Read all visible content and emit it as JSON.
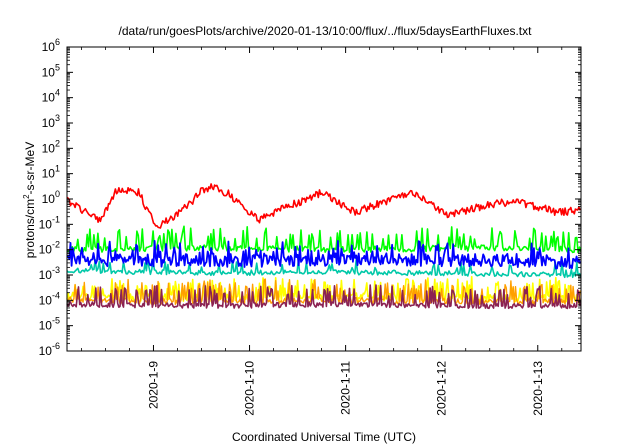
{
  "chart_data": {
    "type": "line",
    "title": "/data/run/goesPlots/archive/2020-01-13/10:00/flux/../flux/5daysEarthFluxes.txt",
    "xlabel": "Coordinated Universal Time (UTC)",
    "ylabel_parts": [
      "protons/cm",
      "2",
      "-s-sr-MeV"
    ],
    "yscale": "log",
    "ylim": [
      1e-06,
      1000000.0
    ],
    "y_ticks": [
      {
        "base": "10",
        "exp": "-6"
      },
      {
        "base": "10",
        "exp": "-5"
      },
      {
        "base": "10",
        "exp": "-4"
      },
      {
        "base": "10",
        "exp": "-3"
      },
      {
        "base": "10",
        "exp": "-2"
      },
      {
        "base": "10",
        "exp": "-1"
      },
      {
        "base": "10",
        "exp": "0"
      },
      {
        "base": "10",
        "exp": "1"
      },
      {
        "base": "10",
        "exp": "2"
      },
      {
        "base": "10",
        "exp": "3"
      },
      {
        "base": "10",
        "exp": "4"
      },
      {
        "base": "10",
        "exp": "5"
      },
      {
        "base": "10",
        "exp": "6"
      }
    ],
    "xlim_days": [
      8.1,
      13.45
    ],
    "x_tick_labels": [
      "2020-1-9",
      "2020-1-10",
      "2020-1-11",
      "2020-1-12",
      "2020-1-13"
    ],
    "x_tick_days": [
      9,
      10,
      11,
      12,
      13
    ],
    "grid": false,
    "series": [
      {
        "color": "#ff0000",
        "width": 1.6,
        "min": 0.02,
        "max": 5,
        "anchors": [
          [
            8.1,
            0.9
          ],
          [
            8.3,
            0.3
          ],
          [
            8.45,
            0.15
          ],
          [
            8.6,
            1.8
          ],
          [
            8.75,
            2.5
          ],
          [
            8.85,
            1.8
          ],
          [
            8.95,
            0.3
          ],
          [
            9.05,
            0.08
          ],
          [
            9.2,
            0.2
          ],
          [
            9.35,
            0.5
          ],
          [
            9.5,
            2
          ],
          [
            9.62,
            3
          ],
          [
            9.8,
            1.5
          ],
          [
            9.95,
            0.4
          ],
          [
            10.1,
            0.15
          ],
          [
            10.25,
            0.3
          ],
          [
            10.45,
            0.6
          ],
          [
            10.6,
            1
          ],
          [
            10.75,
            1.8
          ],
          [
            10.9,
            0.8
          ],
          [
            11.1,
            0.3
          ],
          [
            11.25,
            0.5
          ],
          [
            11.5,
            1
          ],
          [
            11.7,
            1.6
          ],
          [
            11.85,
            0.8
          ],
          [
            12.05,
            0.25
          ],
          [
            12.25,
            0.35
          ],
          [
            12.5,
            0.6
          ],
          [
            12.75,
            0.8
          ],
          [
            13.0,
            0.5
          ],
          [
            13.2,
            0.3
          ],
          [
            13.45,
            0.35
          ]
        ],
        "noise": 0.15,
        "spike_prob": 0,
        "spike_mult": 1,
        "step": 0.012
      },
      {
        "color": "#00ff00",
        "width": 1.6,
        "min": 0.002,
        "max": 0.2,
        "anchors": [
          [
            8.1,
            0.01
          ],
          [
            9.5,
            0.012
          ],
          [
            11.0,
            0.01
          ],
          [
            12.5,
            0.012
          ],
          [
            13.45,
            0.01
          ]
        ],
        "noise": 0.12,
        "spike_prob": 0.22,
        "spike_mult": 6,
        "step": 0.014
      },
      {
        "color": "#00c8a8",
        "width": 1.6,
        "min": 0.0005,
        "max": 0.02,
        "anchors": [
          [
            8.1,
            0.0015
          ],
          [
            9.5,
            0.0012
          ],
          [
            11.0,
            0.0013
          ],
          [
            12.5,
            0.0011
          ],
          [
            13.45,
            0.001
          ]
        ],
        "noise": 0.1,
        "spike_prob": 0.12,
        "spike_mult": 3,
        "step": 0.014
      },
      {
        "color": "#0000ff",
        "width": 1.8,
        "min": 0.0005,
        "max": 0.05,
        "anchors": [
          [
            8.1,
            0.004
          ],
          [
            9.5,
            0.0035
          ],
          [
            11.0,
            0.004
          ],
          [
            12.5,
            0.0038
          ],
          [
            13.45,
            0.003
          ]
        ],
        "noise": 0.25,
        "spike_prob": 0.18,
        "spike_mult": 4,
        "step": 0.012
      },
      {
        "color": "#ffff00",
        "width": 1.6,
        "min": 5e-05,
        "max": 0.005,
        "anchors": [
          [
            8.1,
            0.00015
          ],
          [
            9.5,
            0.00012
          ],
          [
            11.0,
            0.00014
          ],
          [
            12.5,
            0.00012
          ],
          [
            13.45,
            0.00012
          ]
        ],
        "noise": 0.15,
        "spike_prob": 0.25,
        "spike_mult": 5,
        "step": 0.012
      },
      {
        "color": "#ffa000",
        "width": 1.4,
        "min": 4e-05,
        "max": 0.004,
        "anchors": [
          [
            8.1,
            0.0001
          ],
          [
            9.5,
            9e-05
          ],
          [
            11.0,
            0.0001
          ],
          [
            12.5,
            9e-05
          ],
          [
            13.45,
            9e-05
          ]
        ],
        "noise": 0.12,
        "spike_prob": 0.25,
        "spike_mult": 6,
        "step": 0.012
      },
      {
        "color": "#8b2252",
        "width": 1.6,
        "min": 3e-05,
        "max": 0.003,
        "anchors": [
          [
            8.1,
            7e-05
          ],
          [
            9.5,
            6e-05
          ],
          [
            11.0,
            7e-05
          ],
          [
            12.5,
            6e-05
          ],
          [
            13.45,
            6e-05
          ]
        ],
        "noise": 0.1,
        "spike_prob": 0.22,
        "spike_mult": 6,
        "step": 0.012
      }
    ]
  }
}
